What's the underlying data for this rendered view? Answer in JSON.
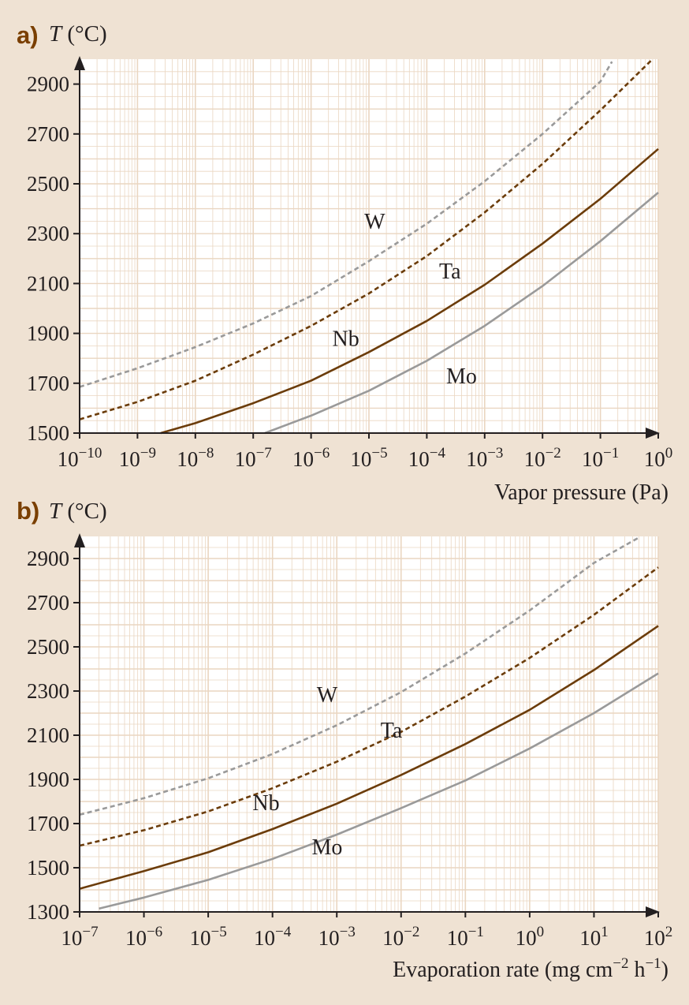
{
  "colors": {
    "background": "#efe2d3",
    "plot_bg": "#ffffff",
    "grid": "#ead6c1",
    "axis": "#231f20",
    "brown": "#6b3c0a",
    "gray": "#9a9a9a",
    "panel_letter": "#7a3f00"
  },
  "chart_data": [
    {
      "type": "line",
      "panel": "a)",
      "ylabel_var": "T",
      "ylabel_unit": "(°C)",
      "xlabel": "Vapor pressure (Pa)",
      "xscale": "log",
      "xlim": [
        -10,
        0
      ],
      "ylim": [
        1500,
        3000
      ],
      "xticks": [
        -10,
        -9,
        -8,
        -7,
        -6,
        -5,
        -4,
        -3,
        -2,
        -1,
        0
      ],
      "yticks": [
        1500,
        1700,
        1900,
        2100,
        2300,
        2500,
        2700,
        2900
      ],
      "grid": true,
      "series": [
        {
          "name": "W",
          "style": "dashed",
          "color": "gray",
          "x": [
            -10,
            -9,
            -8,
            -7,
            -6,
            -5,
            -4,
            -3,
            -2,
            -1,
            -0.8
          ],
          "y": [
            1685,
            1760,
            1845,
            1940,
            2050,
            2190,
            2340,
            2510,
            2700,
            2910,
            2990
          ]
        },
        {
          "name": "Ta",
          "style": "dashed",
          "color": "brown",
          "x": [
            -10,
            -9,
            -8,
            -7,
            -6,
            -5,
            -4,
            -3,
            -2,
            -1,
            -0.1
          ],
          "y": [
            1555,
            1625,
            1710,
            1815,
            1930,
            2060,
            2210,
            2385,
            2580,
            2795,
            3000
          ]
        },
        {
          "name": "Nb",
          "style": "solid",
          "color": "brown",
          "x": [
            -8.6,
            -8,
            -7,
            -6,
            -5,
            -4,
            -3,
            -2,
            -1,
            0
          ],
          "y": [
            1500,
            1540,
            1620,
            1710,
            1825,
            1950,
            2095,
            2260,
            2440,
            2640
          ]
        },
        {
          "name": "Mo",
          "style": "solid",
          "color": "gray",
          "x": [
            -6.8,
            -6,
            -5,
            -4,
            -3,
            -2,
            -1,
            0
          ],
          "y": [
            1500,
            1570,
            1670,
            1790,
            1930,
            2090,
            2270,
            2465
          ]
        }
      ],
      "labels": [
        {
          "text": "W",
          "x": -4.9,
          "y": 2320
        },
        {
          "text": "Ta",
          "x": -3.6,
          "y": 2120
        },
        {
          "text": "Nb",
          "x": -5.4,
          "y": 1850
        },
        {
          "text": "Mo",
          "x": -3.4,
          "y": 1700
        }
      ]
    },
    {
      "type": "line",
      "panel": "b)",
      "ylabel_var": "T",
      "ylabel_unit": "(°C)",
      "xlabel_pre": "Evaporation rate (mg cm",
      "xlabel_sup1": "−2",
      "xlabel_mid": " h",
      "xlabel_sup2": "−1",
      "xlabel_post": ")",
      "xscale": "log",
      "xlim": [
        -7,
        2
      ],
      "ylim": [
        1300,
        3000
      ],
      "xticks": [
        -7,
        -6,
        -5,
        -4,
        -3,
        -2,
        -1,
        0,
        1,
        2
      ],
      "yticks": [
        1300,
        1500,
        1700,
        1900,
        2100,
        2300,
        2500,
        2700,
        2900
      ],
      "grid": true,
      "series": [
        {
          "name": "W",
          "style": "dashed",
          "color": "gray",
          "x": [
            -7,
            -6,
            -5,
            -4,
            -3,
            -2,
            -1,
            0,
            1,
            1.7
          ],
          "y": [
            1740,
            1815,
            1905,
            2015,
            2145,
            2295,
            2470,
            2665,
            2880,
            2995
          ]
        },
        {
          "name": "Ta",
          "style": "dashed",
          "color": "brown",
          "x": [
            -7,
            -6,
            -5,
            -4,
            -3,
            -2,
            -1,
            0,
            1,
            2
          ],
          "y": [
            1600,
            1670,
            1755,
            1860,
            1980,
            2115,
            2275,
            2450,
            2645,
            2860
          ]
        },
        {
          "name": "Nb",
          "style": "solid",
          "color": "brown",
          "x": [
            -7,
            -6,
            -5,
            -4,
            -3,
            -2,
            -1,
            0,
            1,
            2
          ],
          "y": [
            1405,
            1485,
            1570,
            1675,
            1790,
            1920,
            2060,
            2215,
            2395,
            2595
          ]
        },
        {
          "name": "Mo",
          "style": "solid",
          "color": "gray",
          "x": [
            -6.7,
            -6,
            -5,
            -4,
            -3,
            -2,
            -1,
            0,
            1,
            2
          ],
          "y": [
            1315,
            1365,
            1445,
            1540,
            1650,
            1770,
            1895,
            2040,
            2200,
            2380
          ]
        }
      ],
      "labels": [
        {
          "text": "W",
          "x": -3.15,
          "y": 2250
        },
        {
          "text": "Ta",
          "x": -2.15,
          "y": 2090
        },
        {
          "text": "Nb",
          "x": -4.1,
          "y": 1760
        },
        {
          "text": "Mo",
          "x": -3.15,
          "y": 1560
        }
      ]
    }
  ]
}
